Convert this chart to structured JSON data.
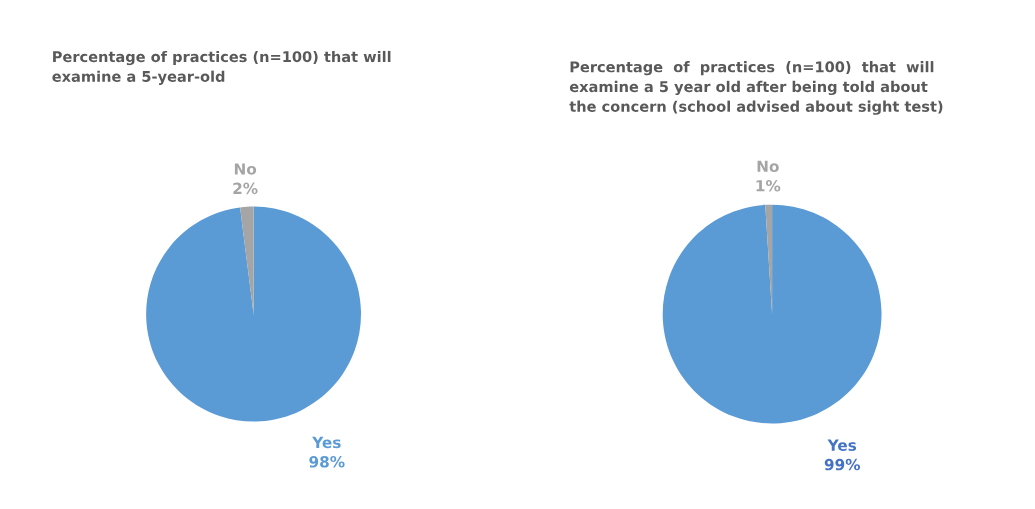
{
  "chart_data": [
    {
      "type": "pie",
      "title": "Percentage of practices (n=100) that will\nexamine a 5-year-old",
      "categories": [
        "Yes",
        "No"
      ],
      "values": [
        98,
        2
      ],
      "colors": [
        "#5b9bd5",
        "#a5a5a5"
      ],
      "value_labels": [
        "98%",
        "2%"
      ]
    },
    {
      "type": "pie",
      "title": "Percentage  of  practices  (n=100)  that  will\nexamine a 5 year old after being told about\nthe concern (school advised about sight test)",
      "categories": [
        "Yes",
        "No"
      ],
      "values": [
        99,
        1
      ],
      "colors": [
        "#5b9bd5",
        "#a5a5a5"
      ],
      "value_labels": [
        "99%",
        "1%"
      ]
    }
  ]
}
